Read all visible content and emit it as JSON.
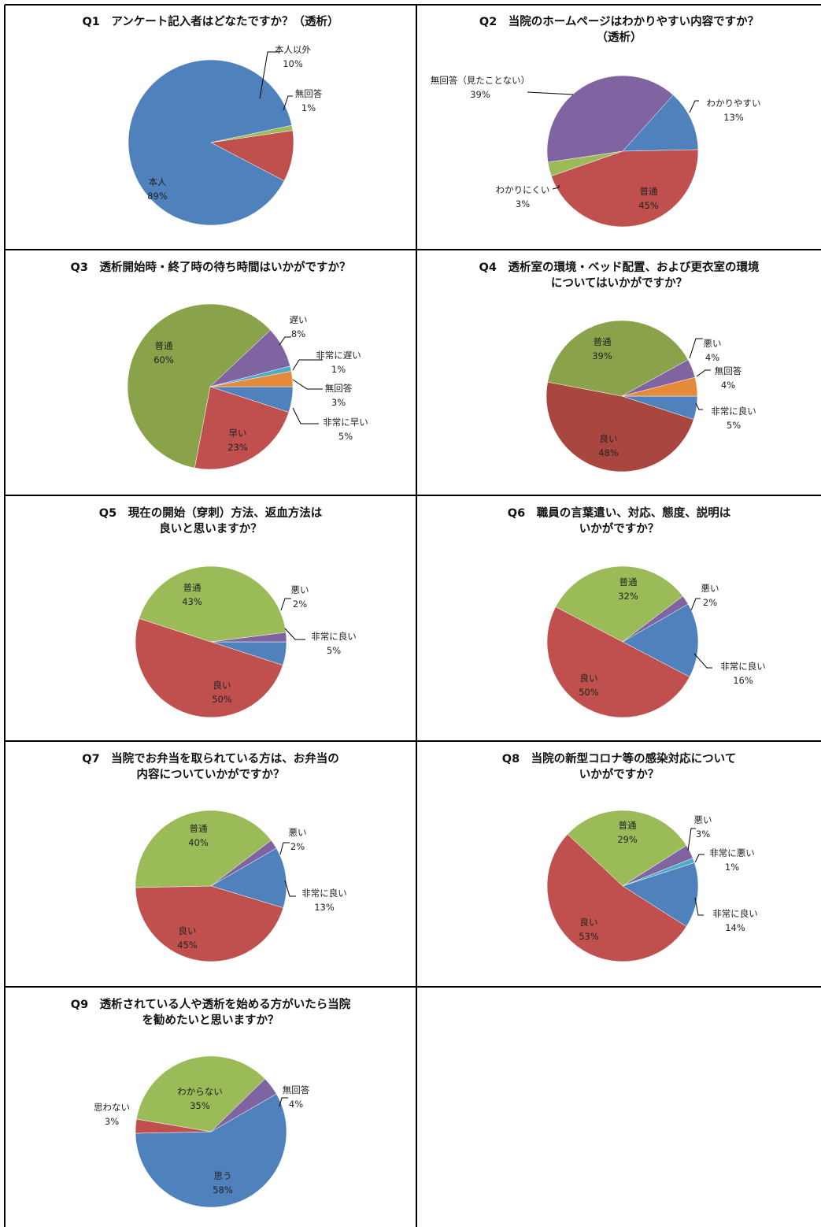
{
  "colors": {
    "blue": "#4f81bd",
    "red": "#c0504d",
    "green": "#9bbb59",
    "olive": "#8aa34a",
    "purple": "#8064a2",
    "teal": "#4bacc6",
    "orange": "#e58a3a",
    "brown": "#a9463f"
  },
  "chart_data": [
    {
      "type": "pie",
      "title": [
        "Q1　アンケート記入者はどなたですか？（透析）"
      ],
      "slices": [
        {
          "name": "本人",
          "value": 89,
          "pct": "89%",
          "color": "blue"
        },
        {
          "name": "本人以外",
          "value": 10,
          "pct": "10%",
          "color": "red"
        },
        {
          "name": "無回答",
          "value": 1,
          "pct": "1%",
          "color": "green"
        }
      ]
    },
    {
      "type": "pie",
      "title": [
        "Q2　当院のホームページはわかりやすい内容ですか？",
        "（透析）"
      ],
      "slices": [
        {
          "name": "わかりやすい",
          "value": 13,
          "pct": "13%",
          "color": "blue"
        },
        {
          "name": "普通",
          "value": 45,
          "pct": "45%",
          "color": "red"
        },
        {
          "name": "わかりにくい",
          "value": 3,
          "pct": "3%",
          "color": "green"
        },
        {
          "name": "無回答（見たことない）",
          "value": 39,
          "pct": "39%",
          "color": "purple"
        }
      ]
    },
    {
      "type": "pie",
      "title": [
        "Q3　透析開始時・終了時の待ち時間はいかがですか？"
      ],
      "slices": [
        {
          "name": "非常に早い",
          "value": 5,
          "pct": "5%",
          "color": "blue"
        },
        {
          "name": "早い",
          "value": 23,
          "pct": "23%",
          "color": "red"
        },
        {
          "name": "普通",
          "value": 60,
          "pct": "60%",
          "color": "olive"
        },
        {
          "name": "遅い",
          "value": 8,
          "pct": "8%",
          "color": "purple"
        },
        {
          "name": "非常に遅い",
          "value": 1,
          "pct": "1%",
          "color": "teal"
        },
        {
          "name": "無回答",
          "value": 3,
          "pct": "3%",
          "color": "orange"
        }
      ]
    },
    {
      "type": "pie",
      "title": [
        "Q4　透析室の環境・ベッド配置、および更衣室の環境",
        "についてはいかがですか？"
      ],
      "slices": [
        {
          "name": "非常に良い",
          "value": 5,
          "pct": "5%",
          "color": "blue"
        },
        {
          "name": "良い",
          "value": 48,
          "pct": "48%",
          "color": "brown"
        },
        {
          "name": "普通",
          "value": 39,
          "pct": "39%",
          "color": "olive"
        },
        {
          "name": "悪い",
          "value": 4,
          "pct": "4%",
          "color": "purple"
        },
        {
          "name": "無回答",
          "value": 4,
          "pct": "4%",
          "color": "orange"
        }
      ]
    },
    {
      "type": "pie",
      "title": [
        "Q5　現在の開始（穿刺）方法、返血方法は",
        "良いと思いますか？"
      ],
      "slices": [
        {
          "name": "非常に良い",
          "value": 5,
          "pct": "5%",
          "color": "blue"
        },
        {
          "name": "良い",
          "value": 50,
          "pct": "50%",
          "color": "red"
        },
        {
          "name": "普通",
          "value": 43,
          "pct": "43%",
          "color": "green"
        },
        {
          "name": "悪い",
          "value": 2,
          "pct": "2%",
          "color": "purple"
        }
      ]
    },
    {
      "type": "pie",
      "title": [
        "Q6　職員の言葉遣い、対応、態度、説明は",
        "いかがですか？"
      ],
      "slices": [
        {
          "name": "非常に良い",
          "value": 16,
          "pct": "16%",
          "color": "blue"
        },
        {
          "name": "良い",
          "value": 50,
          "pct": "50%",
          "color": "red"
        },
        {
          "name": "普通",
          "value": 32,
          "pct": "32%",
          "color": "green"
        },
        {
          "name": "悪い",
          "value": 2,
          "pct": "2%",
          "color": "purple"
        }
      ]
    },
    {
      "type": "pie",
      "title": [
        "Q7　当院でお弁当を取られている方は、お弁当の",
        "内容についていかがですか？"
      ],
      "slices": [
        {
          "name": "非常に良い",
          "value": 13,
          "pct": "13%",
          "color": "blue"
        },
        {
          "name": "良い",
          "value": 45,
          "pct": "45%",
          "color": "red"
        },
        {
          "name": "普通",
          "value": 40,
          "pct": "40%",
          "color": "green"
        },
        {
          "name": "悪い",
          "value": 2,
          "pct": "2%",
          "color": "purple"
        }
      ]
    },
    {
      "type": "pie",
      "title": [
        "Q8　当院の新型コロナ等の感染対応について",
        "いかがですか？"
      ],
      "slices": [
        {
          "name": "非常に良い",
          "value": 14,
          "pct": "14%",
          "color": "blue"
        },
        {
          "name": "良い",
          "value": 53,
          "pct": "53%",
          "color": "red"
        },
        {
          "name": "普通",
          "value": 29,
          "pct": "29%",
          "color": "green"
        },
        {
          "name": "悪い",
          "value": 3,
          "pct": "3%",
          "color": "purple"
        },
        {
          "name": "非常に悪い",
          "value": 1,
          "pct": "1%",
          "color": "teal"
        }
      ]
    },
    {
      "type": "pie",
      "title": [
        "Q9　透析されている人や透析を始める方がいたら当院",
        "を勧めたいと思いますか？"
      ],
      "slices": [
        {
          "name": "思う",
          "value": 58,
          "pct": "58%",
          "color": "blue"
        },
        {
          "name": "思わない",
          "value": 3,
          "pct": "3%",
          "color": "red"
        },
        {
          "name": "わからない",
          "value": 35,
          "pct": "35%",
          "color": "green"
        },
        {
          "name": "無回答",
          "value": 4,
          "pct": "4%",
          "color": "purple"
        }
      ]
    }
  ]
}
